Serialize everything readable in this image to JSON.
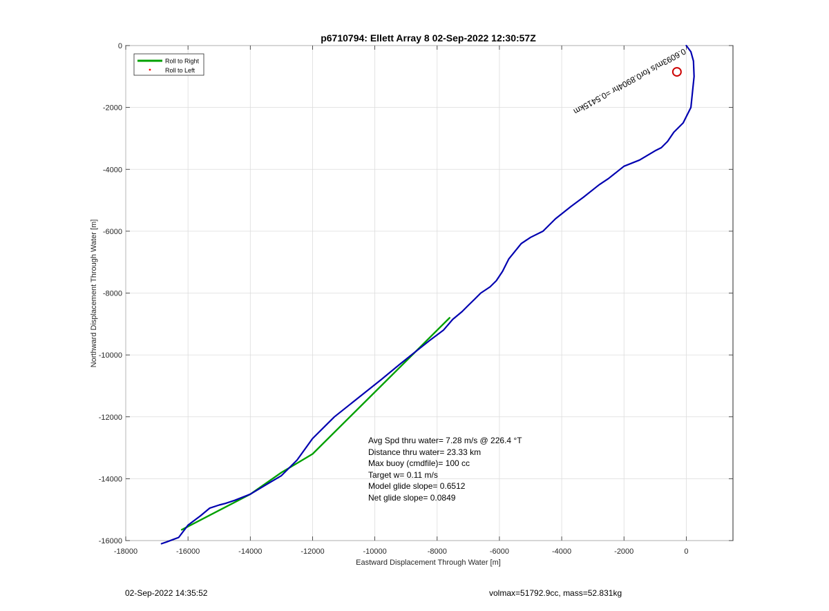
{
  "chart_data": {
    "type": "line",
    "title": "p6710794: Ellett Array 8 02-Sep-2022 12:30:57Z",
    "xlabel": "Eastward Displacement Through Water [m]",
    "ylabel": "Northward Displacement Through Water [m]",
    "xlim": [
      -18000,
      1500
    ],
    "ylim": [
      -16000,
      0
    ],
    "xticks": [
      -18000,
      -16000,
      -14000,
      -12000,
      -10000,
      -8000,
      -6000,
      -4000,
      -2000,
      0
    ],
    "yticks": [
      0,
      -2000,
      -4000,
      -6000,
      -8000,
      -10000,
      -12000,
      -14000,
      -16000
    ],
    "grid": true,
    "legend": {
      "position": "top-left",
      "entries": [
        {
          "label": "Roll to Right",
          "color": "#00a000",
          "style": "line"
        },
        {
          "label": "Roll to Left",
          "color": "#ff0000",
          "style": "dot"
        }
      ]
    },
    "series": [
      {
        "color": "#0000b0",
        "x": [
          0,
          150,
          230,
          250,
          200,
          150,
          -100,
          -400,
          -600,
          -800,
          -1000,
          -1500,
          -2000,
          -2500,
          -2800,
          -3300,
          -3700,
          -4200,
          -4600,
          -5000,
          -5300,
          -5700,
          -5900,
          -6100,
          -6300,
          -6600,
          -6800,
          -7000,
          -7200,
          -7500,
          -7800,
          -8200,
          -8700,
          -9200,
          -9800,
          -10300,
          -10800,
          -11300,
          -11600,
          -12000,
          -12500,
          -13000,
          -13500,
          -14000,
          -14500,
          -14800,
          -15000,
          -15300,
          -15600,
          -16000,
          -16300,
          -16700,
          -16850
        ],
        "y": [
          0,
          -200,
          -500,
          -1000,
          -1500,
          -2000,
          -2500,
          -2800,
          -3100,
          -3300,
          -3400,
          -3700,
          -3900,
          -4300,
          -4500,
          -4900,
          -5200,
          -5600,
          -6000,
          -6200,
          -6400,
          -6900,
          -7300,
          -7600,
          -7800,
          -8000,
          -8200,
          -8400,
          -8600,
          -8850,
          -9200,
          -9500,
          -9900,
          -10300,
          -10800,
          -11200,
          -11600,
          -12000,
          -12300,
          -12700,
          -13400,
          -13900,
          -14200,
          -14500,
          -14700,
          -14800,
          -14850,
          -14950,
          -15200,
          -15500,
          -15900,
          -16050,
          -16100
        ]
      },
      {
        "color": "#00a000",
        "x": [
          -7600,
          -12000,
          -12500,
          -13000,
          -14000,
          -16200
        ],
        "y": [
          -8800,
          -13200,
          -13500,
          -13800,
          -14500,
          -15650
        ]
      }
    ],
    "circle_marker": {
      "x": -300,
      "y": -850,
      "color": "#cc0000"
    },
    "annotation_rotated": "0.6093m/s for0.8904hr =0.5415km",
    "annotation_lines": [
      "Avg Spd thru water=  7.28 m/s @ 226.4 °T",
      "Distance thru water= 23.33 km",
      "Max buoy (cmdfile)= 100 cc",
      "Target w= 0.11 m/s",
      "Model glide slope= 0.6512",
      "Net glide slope= 0.0849"
    ]
  },
  "footer": {
    "timestamp": "02-Sep-2022 14:35:52",
    "vol_mass": "volmax=51792.9cc, mass=52.831kg"
  }
}
